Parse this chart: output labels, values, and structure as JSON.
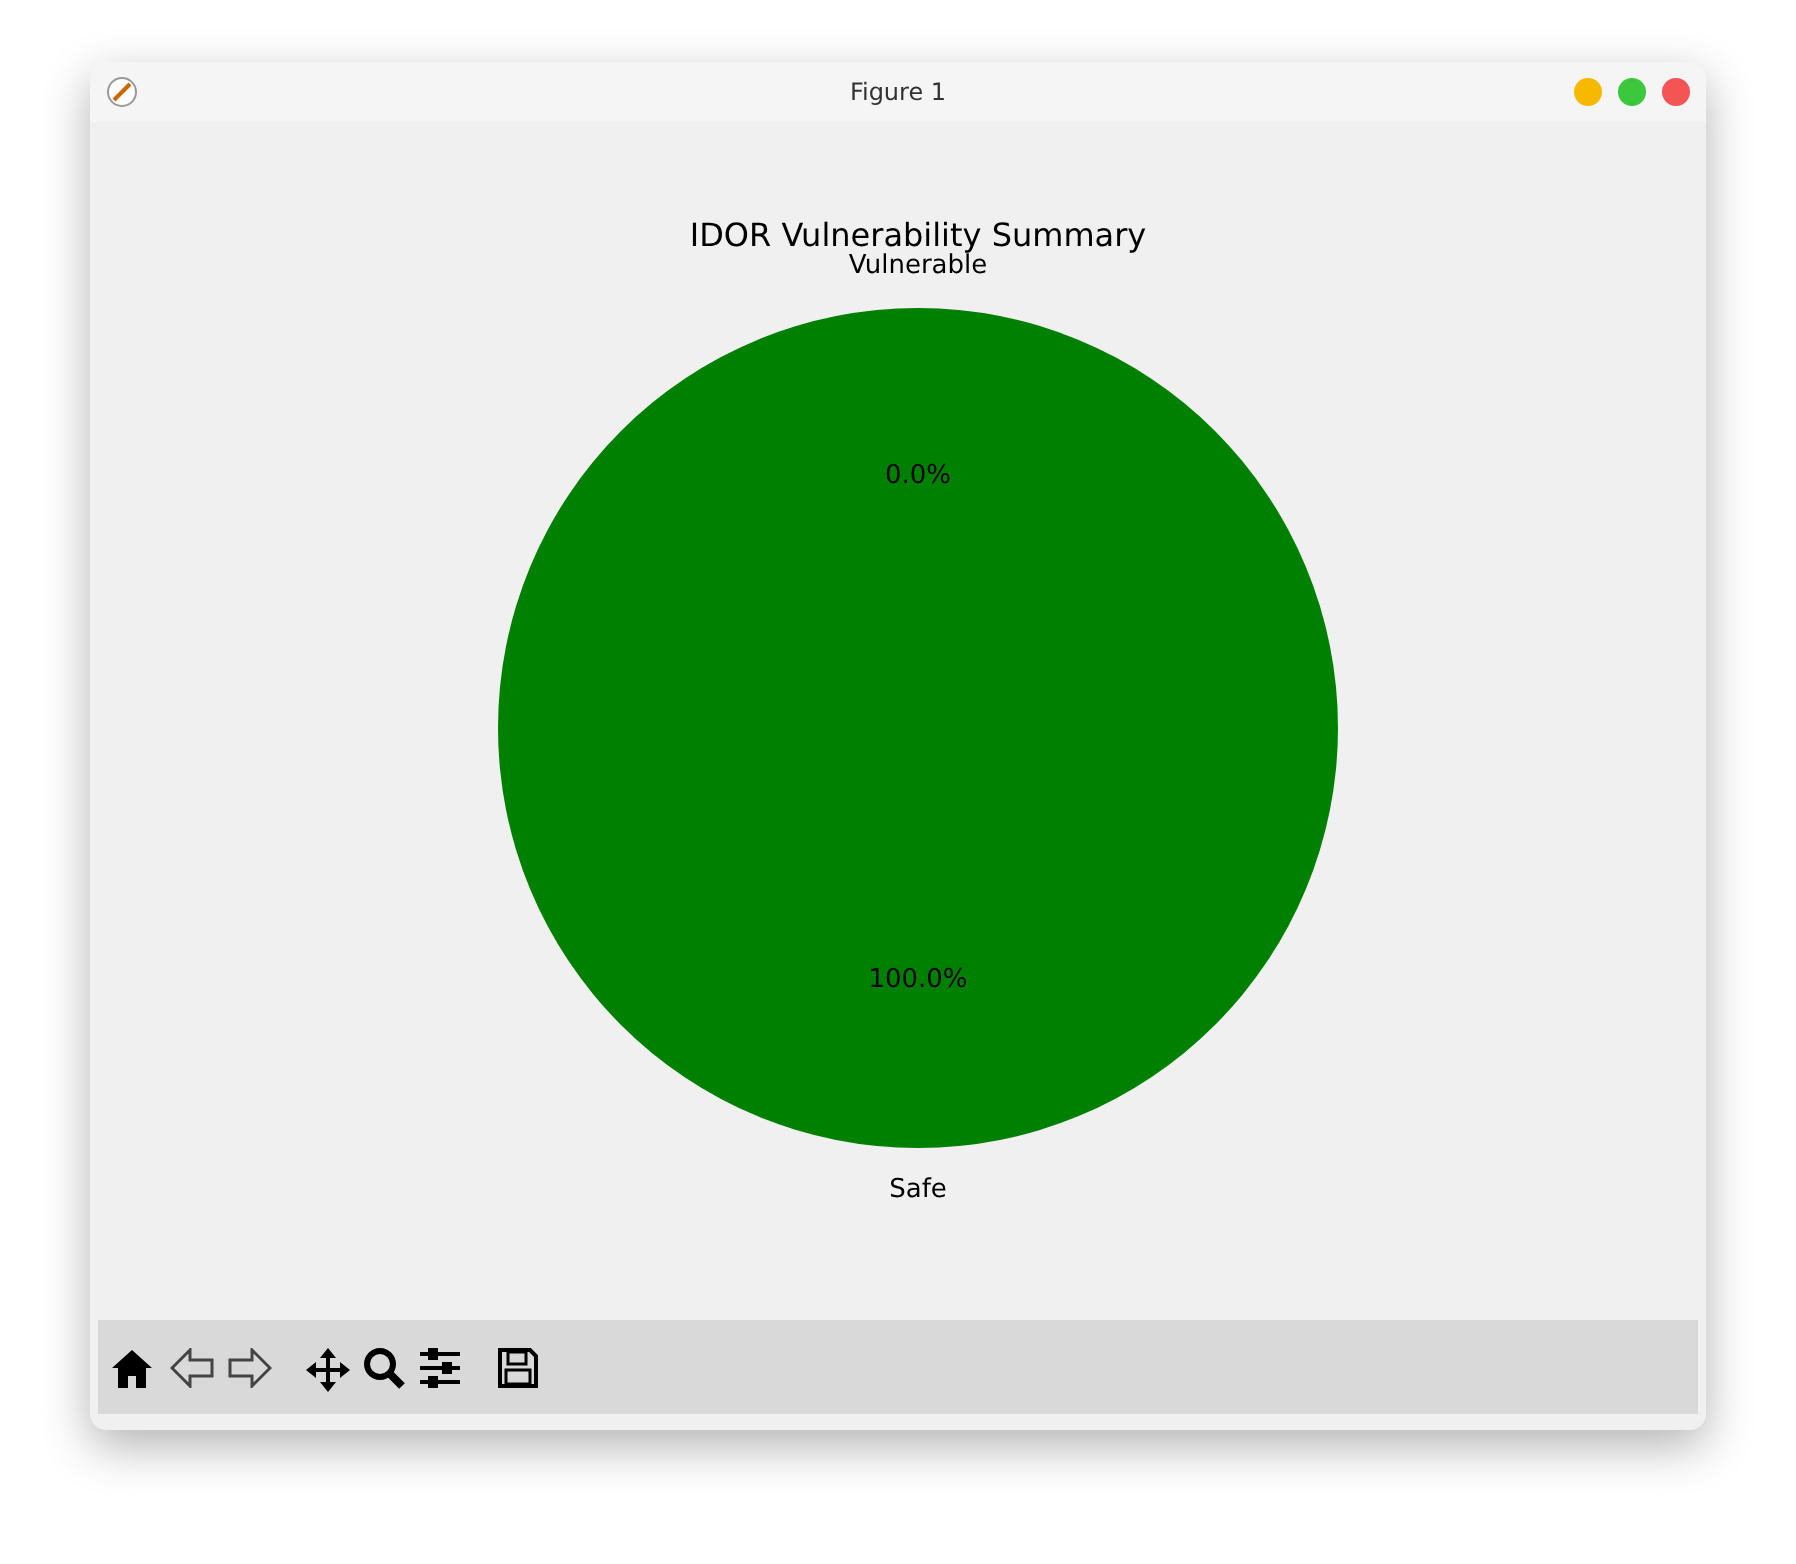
{
  "chart_data": {
    "type": "pie",
    "title": "IDOR Vulnerability Summary",
    "categories": [
      "Vulnerable",
      "Safe"
    ],
    "values": [
      0,
      100
    ],
    "colors": [
      "#ff0000",
      "#008000"
    ],
    "value_labels": [
      "0.0%",
      "100.0%"
    ],
    "legend": false,
    "annotations": [
      "Figure 1"
    ]
  }
}
